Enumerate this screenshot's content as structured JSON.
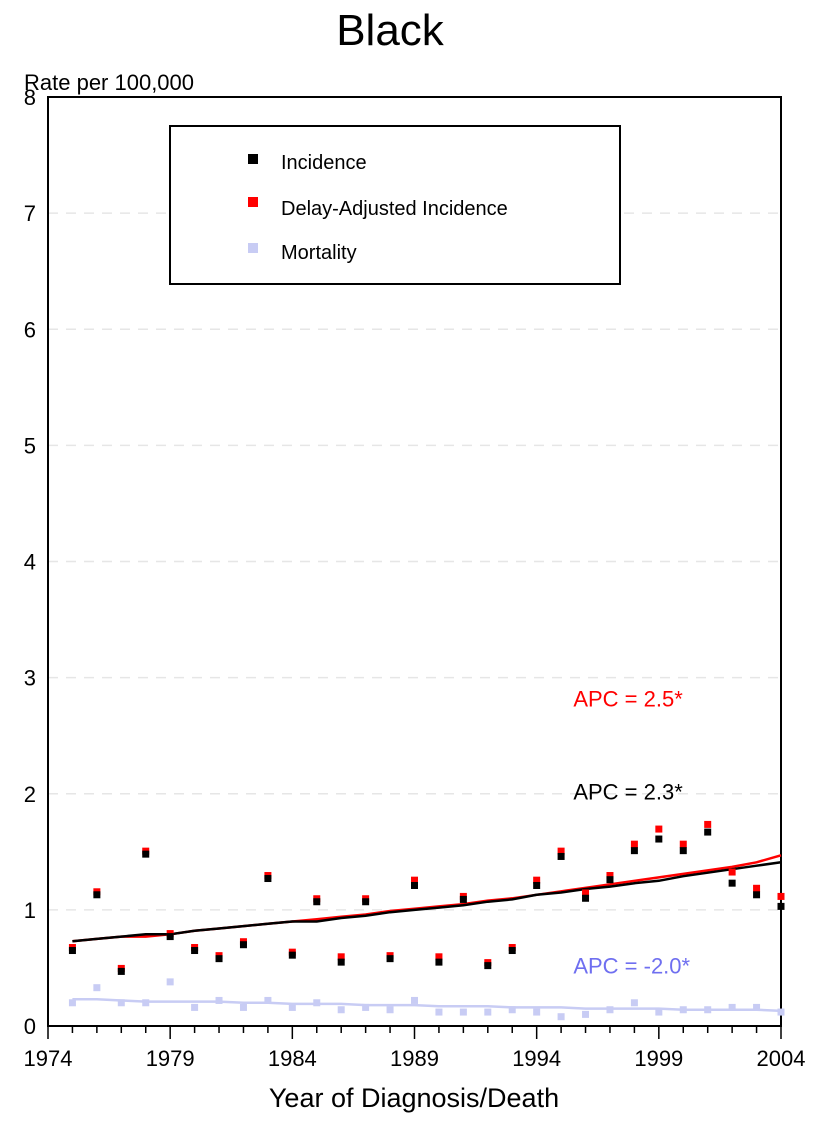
{
  "chart_data": {
    "type": "scatter",
    "title": "Black",
    "ylabel": "Rate per 100,000",
    "xlabel": "Year of Diagnosis/Death",
    "xlim": [
      1974,
      2004
    ],
    "ylim": [
      0,
      8
    ],
    "x_ticks": [
      "1974",
      "1979",
      "1984",
      "1989",
      "1994",
      "1999",
      "2004"
    ],
    "y_ticks": [
      "0",
      "1",
      "2",
      "3",
      "4",
      "5",
      "6",
      "7",
      "8"
    ],
    "colors": {
      "incidence": "#000000",
      "delay_adjusted": "#ff0000",
      "mortality": "#c8ccf4",
      "mortality_label": "#6f6ff0"
    },
    "legend": {
      "placement": "top-center",
      "entries": [
        "Incidence",
        "Delay-Adjusted Incidence",
        "Mortality"
      ]
    },
    "series": [
      {
        "name": "Incidence",
        "x": [
          1975,
          1976,
          1977,
          1978,
          1979,
          1980,
          1981,
          1982,
          1983,
          1984,
          1985,
          1986,
          1987,
          1988,
          1989,
          1990,
          1991,
          1992,
          1993,
          1994,
          1995,
          1996,
          1997,
          1998,
          1999,
          2000,
          2001,
          2002,
          2003,
          2004
        ],
        "y": [
          0.65,
          1.13,
          0.47,
          1.48,
          0.77,
          0.65,
          0.58,
          0.7,
          1.27,
          0.61,
          1.07,
          0.55,
          1.07,
          0.58,
          1.21,
          0.55,
          1.09,
          0.52,
          0.65,
          1.21,
          1.46,
          1.1,
          1.26,
          1.51,
          1.61,
          1.51,
          1.67,
          1.23,
          1.13,
          1.03
        ]
      },
      {
        "name": "Delay-Adjusted Incidence",
        "x": [
          1975,
          1976,
          1977,
          1978,
          1979,
          1980,
          1981,
          1982,
          1983,
          1984,
          1985,
          1986,
          1987,
          1988,
          1989,
          1990,
          1991,
          1992,
          1993,
          1994,
          1995,
          1996,
          1997,
          1998,
          1999,
          2000,
          2001,
          2002,
          2003,
          2004
        ],
        "y": [
          0.65,
          1.13,
          0.47,
          1.48,
          0.77,
          0.65,
          0.58,
          0.7,
          1.27,
          0.61,
          1.07,
          0.57,
          1.07,
          0.58,
          1.23,
          0.57,
          1.09,
          0.52,
          0.65,
          1.23,
          1.48,
          1.12,
          1.27,
          1.54,
          1.67,
          1.54,
          1.71,
          1.3,
          1.16,
          1.09
        ]
      },
      {
        "name": "Mortality",
        "x": [
          1975,
          1976,
          1977,
          1978,
          1979,
          1980,
          1981,
          1982,
          1983,
          1984,
          1985,
          1986,
          1987,
          1988,
          1989,
          1990,
          1991,
          1992,
          1993,
          1994,
          1995,
          1996,
          1997,
          1998,
          1999,
          2000,
          2001,
          2002,
          2003,
          2004
        ],
        "y": [
          0.2,
          0.33,
          0.2,
          0.2,
          0.38,
          0.16,
          0.22,
          0.16,
          0.22,
          0.16,
          0.2,
          0.14,
          0.16,
          0.14,
          0.22,
          0.12,
          0.12,
          0.12,
          0.14,
          0.12,
          0.08,
          0.1,
          0.14,
          0.2,
          0.12,
          0.14,
          0.14,
          0.16,
          0.16,
          0.12
        ]
      }
    ],
    "trend_lines": [
      {
        "name": "Delay-Adjusted Incidence trend",
        "color_key": "delay_adjusted",
        "x": [
          1975,
          1976,
          1977,
          1978,
          1979,
          1980,
          1981,
          1982,
          1983,
          1984,
          1985,
          1986,
          1987,
          1988,
          1989,
          1990,
          1991,
          1992,
          1993,
          1994,
          1995,
          1996,
          1997,
          1998,
          1999,
          2000,
          2001,
          2002,
          2003,
          2004
        ],
        "y": [
          0.73,
          0.75,
          0.77,
          0.77,
          0.79,
          0.82,
          0.84,
          0.86,
          0.88,
          0.9,
          0.92,
          0.94,
          0.96,
          0.99,
          1.01,
          1.03,
          1.05,
          1.08,
          1.1,
          1.13,
          1.16,
          1.19,
          1.22,
          1.25,
          1.28,
          1.31,
          1.34,
          1.37,
          1.41,
          1.47
        ]
      },
      {
        "name": "Incidence trend",
        "color_key": "incidence",
        "x": [
          1975,
          1976,
          1977,
          1978,
          1979,
          1980,
          1981,
          1982,
          1983,
          1984,
          1985,
          1986,
          1987,
          1988,
          1989,
          1990,
          1991,
          1992,
          1993,
          1994,
          1995,
          1996,
          1997,
          1998,
          1999,
          2000,
          2001,
          2002,
          2003,
          2004
        ],
        "y": [
          0.73,
          0.75,
          0.77,
          0.79,
          0.79,
          0.82,
          0.84,
          0.86,
          0.88,
          0.9,
          0.9,
          0.93,
          0.95,
          0.98,
          1.0,
          1.02,
          1.04,
          1.07,
          1.09,
          1.13,
          1.15,
          1.18,
          1.2,
          1.23,
          1.25,
          1.29,
          1.32,
          1.35,
          1.38,
          1.41
        ]
      },
      {
        "name": "Mortality trend",
        "color_key": "mortality",
        "x": [
          1975,
          1976,
          1977,
          1978,
          1979,
          1980,
          1981,
          1982,
          1983,
          1984,
          1985,
          1986,
          1987,
          1988,
          1989,
          1990,
          1991,
          1992,
          1993,
          1994,
          1995,
          1996,
          1997,
          1998,
          1999,
          2000,
          2001,
          2002,
          2003,
          2004
        ],
        "y": [
          0.23,
          0.23,
          0.22,
          0.21,
          0.21,
          0.21,
          0.21,
          0.2,
          0.2,
          0.19,
          0.19,
          0.19,
          0.18,
          0.18,
          0.18,
          0.17,
          0.17,
          0.17,
          0.16,
          0.16,
          0.16,
          0.15,
          0.15,
          0.15,
          0.15,
          0.14,
          0.14,
          0.14,
          0.14,
          0.13
        ]
      }
    ],
    "annotations": [
      {
        "text": "APC = 2.5*",
        "x": 1995.5,
        "y": 2.75,
        "color_key": "delay_adjusted"
      },
      {
        "text": "APC = 2.3*",
        "x": 1995.5,
        "y": 1.95,
        "color_key": "incidence"
      },
      {
        "text": "APC = -2.0*",
        "x": 1995.5,
        "y": 0.45,
        "color_key": "mortality_label"
      }
    ]
  }
}
